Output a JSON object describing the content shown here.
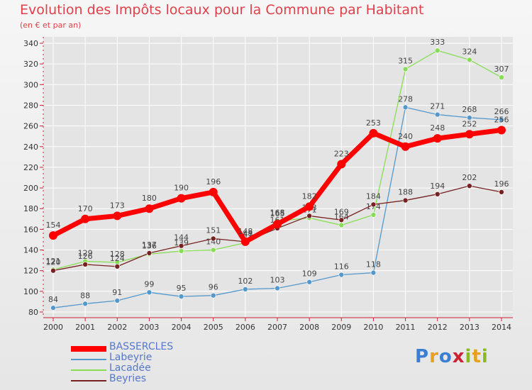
{
  "title": "Evolution des Impôts locaux pour la Commune par Habitant",
  "subtitle": "(en € et par an)",
  "logo_letters": [
    "P",
    "r",
    "o",
    "x",
    "i",
    "t",
    "i"
  ],
  "logo_text": "Proxiti",
  "colors": {
    "title": "#e0404a",
    "axis": "#cc2233",
    "grid": "#ffffff",
    "logo": [
      "#3b7fd4",
      "#e8a020",
      "#3b7fd4",
      "#cc2233",
      "#88bb22",
      "#e8a020",
      "#88bb22"
    ]
  },
  "chart_data": {
    "type": "line",
    "title": "Evolution des Impôts locaux pour la Commune par Habitant",
    "ylabel": "(en € et par an)",
    "xlabel": "",
    "ylim": [
      80,
      340
    ],
    "yticks": [
      80,
      100,
      120,
      140,
      160,
      180,
      200,
      220,
      240,
      260,
      280,
      300,
      320,
      340
    ],
    "x": [
      "2000",
      "2001",
      "2002",
      "2003",
      "2004",
      "2005",
      "2006",
      "2007",
      "2008",
      "2009",
      "2010",
      "2011",
      "2012",
      "2013",
      "2014"
    ],
    "series": [
      {
        "name": "BASSERCLES",
        "color": "#ff0000",
        "width": 7,
        "marker": 6,
        "values": [
          154,
          170,
          173,
          180,
          190,
          196,
          148,
          165,
          182,
          223,
          253,
          240,
          248,
          252,
          256
        ]
      },
      {
        "name": "Labeyrie",
        "color": "#5599cc",
        "width": 1.3,
        "marker": 3.5,
        "values": [
          84,
          88,
          91,
          99,
          95,
          96,
          102,
          103,
          109,
          116,
          118,
          278,
          271,
          268,
          266
        ]
      },
      {
        "name": "Lacadée",
        "color": "#88dd55",
        "width": 1.3,
        "marker": 3.5,
        "values": [
          121,
          129,
          128,
          136,
          139,
          140,
          147,
          168,
          171,
          164,
          174,
          315,
          333,
          324,
          307
        ]
      },
      {
        "name": "Beyries",
        "color": "#772222",
        "width": 1.3,
        "marker": 3.5,
        "values": [
          120,
          126,
          124,
          137,
          144,
          151,
          148,
          161,
          173,
          169,
          184,
          188,
          194,
          202,
          196
        ]
      }
    ]
  }
}
